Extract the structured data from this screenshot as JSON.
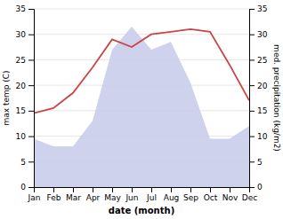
{
  "chart_data": {
    "type": "line",
    "categories": [
      "Jan",
      "Feb",
      "Mar",
      "Apr",
      "May",
      "Jun",
      "Jul",
      "Aug",
      "Sep",
      "Oct",
      "Nov",
      "Dec"
    ],
    "series": [
      {
        "type": "area",
        "axis": "y2",
        "color": "#c5caea",
        "values": [
          9.5,
          8.0,
          8.0,
          13.0,
          27.0,
          31.5,
          27.0,
          28.5,
          20.5,
          9.5,
          9.5,
          12.0
        ]
      },
      {
        "type": "line",
        "color": "#cc4444",
        "values": [
          14.5,
          15.5,
          18.5,
          23.5,
          29.0,
          27.5,
          30.0,
          30.5,
          31.0,
          30.5,
          24.0,
          17.0
        ]
      }
    ],
    "xlabel": "date (month)",
    "ylabel": "max temp (C)",
    "y2label": "med. precipitation (kg/m2)",
    "ylim": [
      0,
      35
    ],
    "yticks": [
      0,
      5,
      10,
      15,
      20,
      25,
      30,
      35
    ],
    "y2lim": [
      0,
      35
    ],
    "y2ticks": [
      0,
      5,
      10,
      15,
      20,
      25,
      30,
      35
    ],
    "grid": true
  }
}
